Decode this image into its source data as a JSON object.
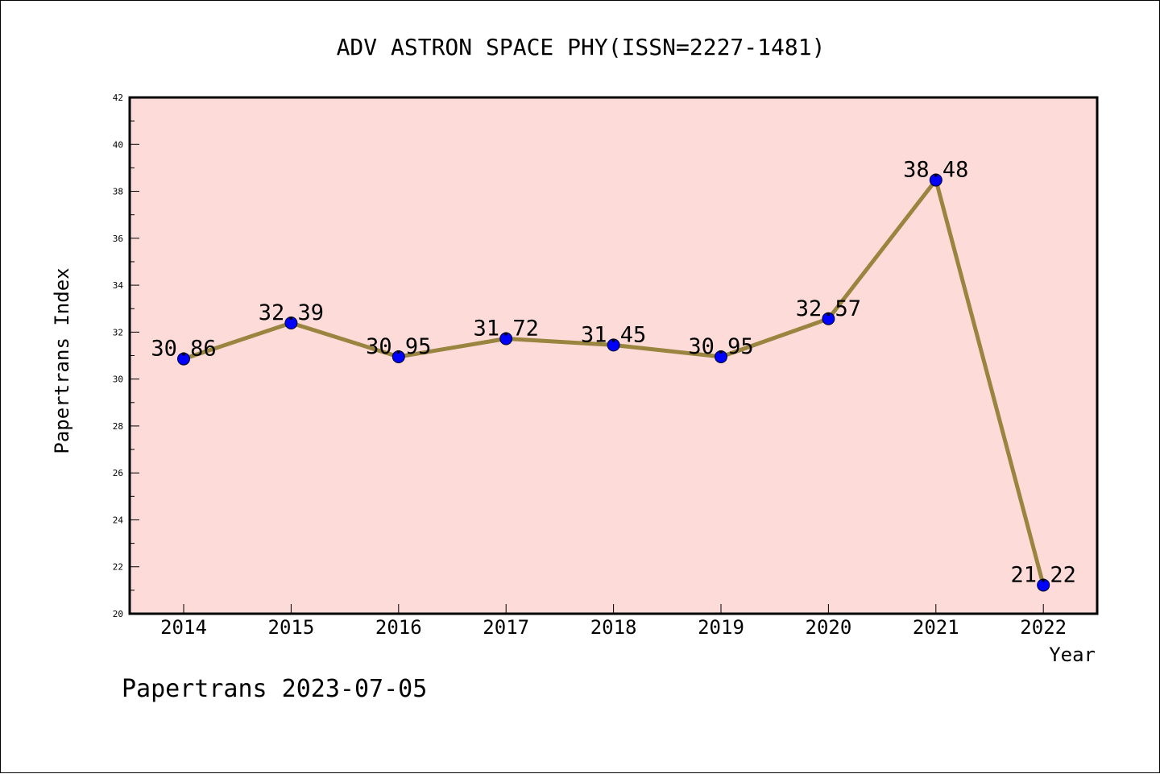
{
  "footer": {
    "credit": "Papertrans 2023-07-05"
  },
  "chart_data": {
    "type": "line",
    "title": "ADV ASTRON SPACE PHY(ISSN=2227-1481)",
    "xlabel": "Year",
    "ylabel": "Papertrans Index",
    "x": [
      "2014",
      "2015",
      "2016",
      "2017",
      "2018",
      "2019",
      "2020",
      "2021",
      "2022"
    ],
    "values": [
      30.86,
      32.39,
      30.95,
      31.72,
      31.45,
      30.95,
      32.57,
      38.48,
      21.22
    ],
    "data_labels": [
      "30.86",
      "32.39",
      "30.95",
      "31.72",
      "31.45",
      "30.95",
      "32.57",
      "38.48",
      "21.22"
    ],
    "ylim": [
      20,
      42
    ],
    "yticks": [
      "20",
      "22",
      "24",
      "26",
      "28",
      "30",
      "32",
      "34",
      "36",
      "38",
      "40",
      "42"
    ],
    "grid": false,
    "colors": {
      "plot_background": "#fddbd8",
      "line": "#9a8540",
      "marker": "#0000ff"
    }
  }
}
